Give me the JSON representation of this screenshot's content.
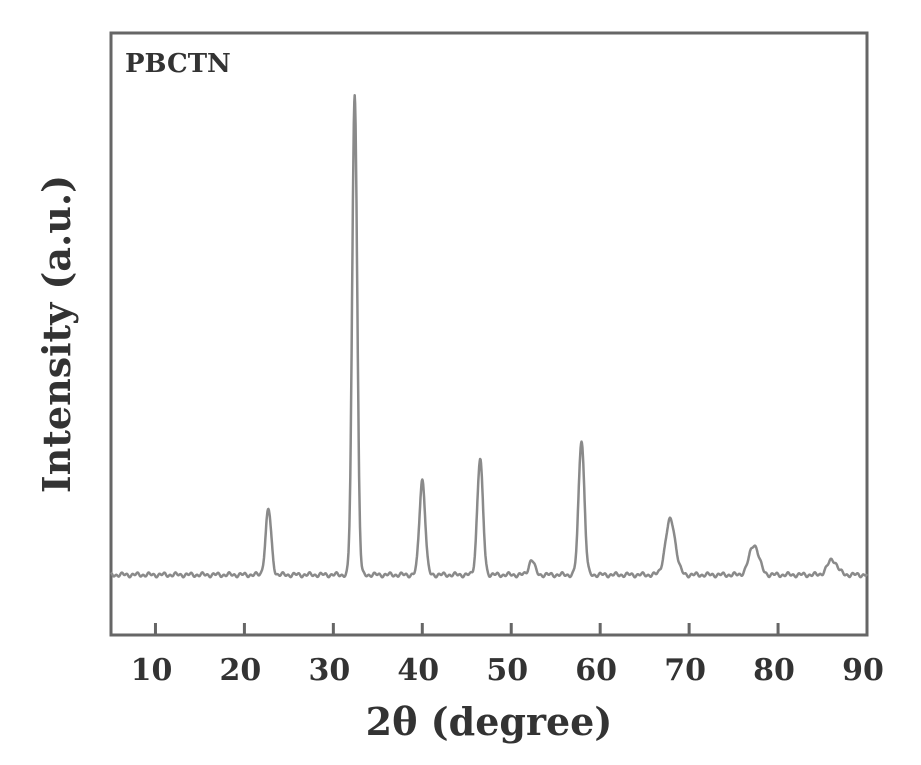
{
  "chart_data": {
    "type": "line",
    "panel_label": "PBCTN",
    "xlabel": "2θ (degree)",
    "ylabel": "Intensity (a.u.)",
    "xlim": [
      5,
      90
    ],
    "ylim": [
      -8,
      112
    ],
    "xticks": [
      10,
      20,
      30,
      40,
      50,
      60,
      70,
      80,
      90
    ],
    "baseline": 4,
    "colors": {
      "line": "#8a8a8a",
      "axes": "#666666",
      "text": "#333333"
    },
    "series": [
      {
        "peaks": [
          {
            "x": 22.7,
            "height": 13
          },
          {
            "x": 32.4,
            "height": 96
          },
          {
            "x": 40.0,
            "height": 19
          },
          {
            "x": 46.5,
            "height": 23
          },
          {
            "x": 52.3,
            "height": 3
          },
          {
            "x": 57.9,
            "height": 27
          },
          {
            "x": 67.9,
            "height": 11
          },
          {
            "x": 77.3,
            "height": 6
          },
          {
            "x": 86.1,
            "height": 3
          }
        ]
      }
    ]
  }
}
